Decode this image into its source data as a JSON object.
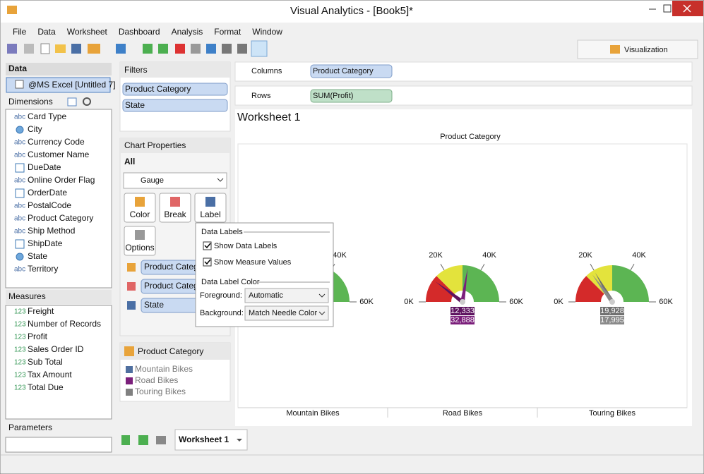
{
  "window": {
    "title": "Visual Analytics - [Book5]*"
  },
  "menu": [
    "File",
    "Data",
    "Worksheet",
    "Dashboard",
    "Analysis",
    "Format",
    "Window"
  ],
  "toolbar": {
    "visualization_tab": "Visualization"
  },
  "data_panel": {
    "header": "Data",
    "source": "@MS Excel [Untitled 7]",
    "dimensions_header": "Dimensions",
    "dimensions": [
      {
        "badge": "abc",
        "name": "Card Type"
      },
      {
        "icon": "globe",
        "name": "City"
      },
      {
        "badge": "abc",
        "name": "Currency Code"
      },
      {
        "badge": "abc",
        "name": "Customer Name"
      },
      {
        "icon": "calendar",
        "name": "DueDate"
      },
      {
        "badge": "abc",
        "name": "Online Order Flag"
      },
      {
        "icon": "calendar",
        "name": "OrderDate"
      },
      {
        "badge": "abc",
        "name": "PostalCode"
      },
      {
        "badge": "abc",
        "name": "Product Category"
      },
      {
        "badge": "abc",
        "name": "Ship Method"
      },
      {
        "icon": "calendar",
        "name": "ShipDate"
      },
      {
        "icon": "globe",
        "name": "State"
      },
      {
        "badge": "abc",
        "name": "Territory"
      }
    ],
    "measures_header": "Measures",
    "measures": [
      {
        "badge": "123",
        "name": "Freight"
      },
      {
        "badge": "123",
        "name": "Number of Records"
      },
      {
        "badge": "123",
        "name": "Profit"
      },
      {
        "badge": "123",
        "name": "Sales Order ID"
      },
      {
        "badge": "123",
        "name": "Sub Total"
      },
      {
        "badge": "123",
        "name": "Tax Amount"
      },
      {
        "badge": "123",
        "name": "Total Due"
      }
    ],
    "parameters_header": "Parameters"
  },
  "filters": {
    "header": "Filters",
    "items": [
      "Product Category",
      "State"
    ]
  },
  "chart_properties": {
    "header": "Chart Properties",
    "scope": "All",
    "chart_type": "Gauge",
    "buttons": [
      "Color",
      "Break",
      "Label",
      "Options"
    ],
    "shelf": [
      "Product Catego",
      "Product Catego",
      "State"
    ]
  },
  "legend": {
    "title": "Product Category",
    "items": [
      {
        "name": "Mountain Bikes",
        "color": "#4f6f9f"
      },
      {
        "name": "Road Bikes",
        "color": "#7b1f7b"
      },
      {
        "name": "Touring Bikes",
        "color": "#808080"
      }
    ]
  },
  "columns": {
    "label": "Columns",
    "pill": "Product Category"
  },
  "rows": {
    "label": "Rows",
    "pill": "SUM(Profit)"
  },
  "worksheet": {
    "title": "Worksheet 1",
    "header": "Product Category",
    "gauges": [
      {
        "category": "Mountain Bikes",
        "range": [
          0,
          60000
        ],
        "ticks": [
          {
            "value": 40000,
            "label": "40K"
          },
          {
            "value": 60000,
            "label": "60K"
          }
        ],
        "bands": [
          {
            "from": 0,
            "to": 15000,
            "color": "#d42a2a"
          },
          {
            "from": 15000,
            "to": 30000,
            "color": "#e3e33c"
          },
          {
            "from": 30000,
            "to": 60000,
            "color": "#5cb553"
          }
        ],
        "needles": []
      },
      {
        "category": "Road Bikes",
        "range": [
          0,
          60000
        ],
        "ticks": [
          {
            "value": 0,
            "label": "0K"
          },
          {
            "value": 20000,
            "label": "20K"
          },
          {
            "value": 40000,
            "label": "40K"
          },
          {
            "value": 60000,
            "label": "60K"
          }
        ],
        "bands": [
          {
            "from": 0,
            "to": 15000,
            "color": "#d42a2a"
          },
          {
            "from": 15000,
            "to": 30000,
            "color": "#e3e33c"
          },
          {
            "from": 30000,
            "to": 60000,
            "color": "#5cb553"
          }
        ],
        "needles": [
          {
            "value": 12333,
            "label": "12,333",
            "color": "#5e1460"
          },
          {
            "value": 32888,
            "label": "32,888",
            "color": "#7b1f7b"
          }
        ]
      },
      {
        "category": "Touring Bikes",
        "range": [
          0,
          60000
        ],
        "ticks": [
          {
            "value": 0,
            "label": "0K"
          },
          {
            "value": 20000,
            "label": "20K"
          },
          {
            "value": 40000,
            "label": "40K"
          },
          {
            "value": 60000,
            "label": "60K"
          }
        ],
        "bands": [
          {
            "from": 0,
            "to": 15000,
            "color": "#d42a2a"
          },
          {
            "from": 15000,
            "to": 30000,
            "color": "#e3e33c"
          },
          {
            "from": 30000,
            "to": 60000,
            "color": "#5cb553"
          }
        ],
        "needles": [
          {
            "value": 19928,
            "label": "19,928",
            "color": "#707070"
          },
          {
            "value": 17995,
            "label": "17,995",
            "color": "#8a8a8a"
          }
        ]
      }
    ]
  },
  "popup": {
    "section1": "Data Labels",
    "show_data_labels": "Show Data Labels",
    "show_measure_values": "Show Measure Values",
    "section2": "Data Label Color",
    "foreground_label": "Foreground:",
    "foreground_value": "Automatic",
    "background_label": "Background:",
    "background_value": "Match Needle Color"
  },
  "tabs": [
    "Worksheet 1"
  ]
}
